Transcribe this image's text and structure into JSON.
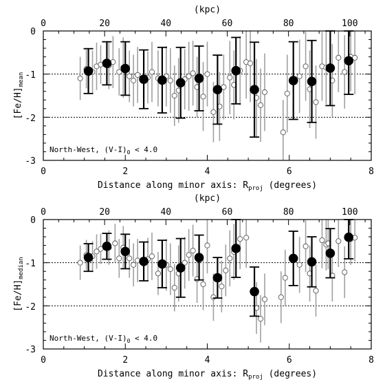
{
  "chart_data": [
    {
      "type": "scatter",
      "xlabel_main": "Distance along minor axis: R",
      "xlabel_sub": "proj",
      "xlabel_tail": " (degrees)",
      "ylabel_main": "[Fe/H]",
      "ylabel_sub": "mean",
      "top_axis_label": "(kpc)",
      "annotation_main": "North-West, (V-I)",
      "annotation_sub": "0",
      "annotation_tail": " < 4.0",
      "xlim": [
        0,
        8
      ],
      "ylim": [
        -3,
        0
      ],
      "top_lim": [
        0,
        107
      ],
      "x_ticks": [
        "0",
        "2",
        "4",
        "6",
        "8"
      ],
      "y_ticks": [
        "0",
        "-1",
        "-2",
        "-3"
      ],
      "top_ticks": [
        "0",
        "20",
        "40",
        "60",
        "80",
        "100"
      ],
      "reference_lines": [
        -1,
        -2
      ],
      "series": [
        {
          "points": [
            {
              "x": 1.1,
              "y": -0.93,
              "err_lo": 0.52,
              "err_hi": 0.52
            },
            {
              "x": 1.55,
              "y": -0.75,
              "err_lo": 0.5,
              "err_hi": 0.5
            },
            {
              "x": 2.0,
              "y": -0.87,
              "err_lo": 0.62,
              "err_hi": 0.62
            },
            {
              "x": 2.45,
              "y": -1.12,
              "err_lo": 0.68,
              "err_hi": 0.68
            },
            {
              "x": 2.9,
              "y": -1.14,
              "err_lo": 0.76,
              "err_hi": 0.76
            },
            {
              "x": 3.35,
              "y": -1.2,
              "err_lo": 0.82,
              "err_hi": 0.82
            },
            {
              "x": 3.8,
              "y": -1.1,
              "err_lo": 0.75,
              "err_hi": 0.75
            },
            {
              "x": 4.25,
              "y": -1.36,
              "err_lo": 0.8,
              "err_hi": 0.8
            },
            {
              "x": 4.7,
              "y": -0.92,
              "err_lo": 0.77,
              "err_hi": 0.77
            },
            {
              "x": 5.15,
              "y": -1.36,
              "err_lo": 1.1,
              "err_hi": 1.1
            },
            {
              "x": 6.1,
              "y": -1.15,
              "err_lo": 0.9,
              "err_hi": 0.9
            },
            {
              "x": 6.55,
              "y": -1.17,
              "err_lo": 0.95,
              "err_hi": 0.95
            },
            {
              "x": 7.0,
              "y": -0.86,
              "err_lo": 0.87,
              "err_hi": 0.87
            },
            {
              "x": 7.45,
              "y": -0.69,
              "err_lo": 0.78,
              "err_hi": 0.78
            }
          ]
        },
        {
          "points": [
            {
              "x": 0.9,
              "y": -1.1,
              "err": 0.5
            },
            {
              "x": 1.05,
              "y": -0.88,
              "err": 0.45
            },
            {
              "x": 1.2,
              "y": -0.95,
              "err": 0.5
            },
            {
              "x": 1.3,
              "y": -0.82,
              "err": 0.55
            },
            {
              "x": 1.4,
              "y": -0.78,
              "err": 0.45
            },
            {
              "x": 1.6,
              "y": -0.8,
              "err": 0.55
            },
            {
              "x": 1.7,
              "y": -0.72,
              "err": 0.6
            },
            {
              "x": 1.85,
              "y": -0.95,
              "err": 0.55
            },
            {
              "x": 1.95,
              "y": -0.85,
              "err": 0.7
            },
            {
              "x": 2.1,
              "y": -1.05,
              "err": 0.6
            },
            {
              "x": 2.2,
              "y": -1.15,
              "err": 0.6
            },
            {
              "x": 2.3,
              "y": -1.02,
              "err": 0.65
            },
            {
              "x": 2.55,
              "y": -1.08,
              "err": 0.6
            },
            {
              "x": 2.65,
              "y": -0.95,
              "err": 0.7
            },
            {
              "x": 2.8,
              "y": -1.1,
              "err": 0.65
            },
            {
              "x": 3.0,
              "y": -1.05,
              "err": 0.7
            },
            {
              "x": 3.1,
              "y": -1.15,
              "err": 0.75
            },
            {
              "x": 3.2,
              "y": -1.5,
              "err": 0.7
            },
            {
              "x": 3.3,
              "y": -1.38,
              "err": 0.75
            },
            {
              "x": 3.45,
              "y": -1.12,
              "err": 0.7
            },
            {
              "x": 3.55,
              "y": -1.05,
              "err": 0.8
            },
            {
              "x": 3.65,
              "y": -0.98,
              "err": 0.75
            },
            {
              "x": 3.75,
              "y": -1.3,
              "err": 0.7
            },
            {
              "x": 3.9,
              "y": -1.52,
              "err": 0.8
            },
            {
              "x": 4.0,
              "y": -1.0,
              "err": 0.75
            },
            {
              "x": 4.15,
              "y": -1.88,
              "err": 0.7
            },
            {
              "x": 4.3,
              "y": -1.75,
              "err": 0.8
            },
            {
              "x": 4.4,
              "y": -1.3,
              "err": 0.75
            },
            {
              "x": 4.55,
              "y": -1.08,
              "err": 0.85
            },
            {
              "x": 4.65,
              "y": -1.25,
              "err": 0.8
            },
            {
              "x": 4.8,
              "y": -0.92,
              "err": 0.8
            },
            {
              "x": 4.95,
              "y": -0.72,
              "err": 0.85
            },
            {
              "x": 5.05,
              "y": -0.75,
              "err": 0.9
            },
            {
              "x": 5.2,
              "y": -1.55,
              "err": 0.9
            },
            {
              "x": 5.3,
              "y": -1.72,
              "err": 0.85
            },
            {
              "x": 5.4,
              "y": -1.42,
              "err": 0.9
            },
            {
              "x": 5.85,
              "y": -2.35,
              "err": 0.75
            },
            {
              "x": 5.95,
              "y": -1.45,
              "err": 0.9
            },
            {
              "x": 6.25,
              "y": -1.05,
              "err": 0.85
            },
            {
              "x": 6.4,
              "y": -0.82,
              "err": 0.8
            },
            {
              "x": 6.5,
              "y": -1.35,
              "err": 0.9
            },
            {
              "x": 6.65,
              "y": -1.65,
              "err": 0.85
            },
            {
              "x": 6.8,
              "y": -0.82,
              "err": 0.8
            },
            {
              "x": 6.9,
              "y": -0.85,
              "err": 0.85
            },
            {
              "x": 7.05,
              "y": -1.15,
              "err": 0.85
            },
            {
              "x": 7.2,
              "y": -0.62,
              "err": 0.8
            },
            {
              "x": 7.35,
              "y": -0.95,
              "err": 0.85
            },
            {
              "x": 7.5,
              "y": -0.6,
              "err": 0.8
            },
            {
              "x": 7.6,
              "y": -0.62,
              "err": 0.85
            }
          ]
        }
      ]
    },
    {
      "type": "scatter",
      "xlabel_main": "Distance along minor axis: R",
      "xlabel_sub": "proj",
      "xlabel_tail": " (degrees)",
      "ylabel_main": "[Fe/H]",
      "ylabel_sub": "median",
      "top_axis_label": "(kpc)",
      "annotation_main": "North-West, (V-I)",
      "annotation_sub": "0",
      "annotation_tail": " < 4.0",
      "xlim": [
        0,
        8
      ],
      "ylim": [
        -3,
        0
      ],
      "top_lim": [
        0,
        107
      ],
      "x_ticks": [
        "0",
        "2",
        "4",
        "6",
        "8"
      ],
      "y_ticks": [
        "0",
        "-1",
        "-2",
        "-3"
      ],
      "top_ticks": [
        "0",
        "20",
        "40",
        "60",
        "80",
        "100"
      ],
      "reference_lines": [
        -1,
        -2
      ],
      "series": [
        {
          "points": [
            {
              "x": 1.1,
              "y": -0.88,
              "err_lo": 0.32,
              "err_hi": 0.32
            },
            {
              "x": 1.55,
              "y": -0.62,
              "err_lo": 0.3,
              "err_hi": 0.3
            },
            {
              "x": 2.0,
              "y": -0.74,
              "err_lo": 0.4,
              "err_hi": 0.4
            },
            {
              "x": 2.45,
              "y": -0.97,
              "err_lo": 0.45,
              "err_hi": 0.45
            },
            {
              "x": 2.9,
              "y": -1.03,
              "err_lo": 0.55,
              "err_hi": 0.55
            },
            {
              "x": 3.35,
              "y": -1.12,
              "err_lo": 0.68,
              "err_hi": 0.68
            },
            {
              "x": 3.8,
              "y": -0.88,
              "err_lo": 0.52,
              "err_hi": 0.52
            },
            {
              "x": 4.25,
              "y": -1.35,
              "err_lo": 0.47,
              "err_hi": 0.47
            },
            {
              "x": 4.7,
              "y": -0.67,
              "err_lo": 0.67,
              "err_hi": 0.67
            },
            {
              "x": 5.15,
              "y": -1.67,
              "err_lo": 0.57,
              "err_hi": 0.57
            },
            {
              "x": 6.1,
              "y": -0.9,
              "err_lo": 0.63,
              "err_hi": 0.63
            },
            {
              "x": 6.55,
              "y": -0.98,
              "err_lo": 0.58,
              "err_hi": 0.58
            },
            {
              "x": 7.0,
              "y": -0.78,
              "err_lo": 0.57,
              "err_hi": 0.57
            },
            {
              "x": 7.45,
              "y": -0.41,
              "err_lo": 0.5,
              "err_hi": 0.5
            }
          ]
        },
        {
          "points": [
            {
              "x": 0.9,
              "y": -1.0,
              "err": 0.4
            },
            {
              "x": 1.05,
              "y": -0.82,
              "err": 0.35
            },
            {
              "x": 1.2,
              "y": -0.85,
              "err": 0.35
            },
            {
              "x": 1.3,
              "y": -0.74,
              "err": 0.4
            },
            {
              "x": 1.4,
              "y": -0.68,
              "err": 0.35
            },
            {
              "x": 1.6,
              "y": -0.65,
              "err": 0.4
            },
            {
              "x": 1.75,
              "y": -0.55,
              "err": 0.45
            },
            {
              "x": 1.85,
              "y": -0.9,
              "err": 0.45
            },
            {
              "x": 1.95,
              "y": -0.65,
              "err": 0.5
            },
            {
              "x": 2.1,
              "y": -0.9,
              "err": 0.45
            },
            {
              "x": 2.2,
              "y": -1.05,
              "err": 0.5
            },
            {
              "x": 2.3,
              "y": -0.95,
              "err": 0.5
            },
            {
              "x": 2.55,
              "y": -0.92,
              "err": 0.5
            },
            {
              "x": 2.65,
              "y": -0.85,
              "err": 0.55
            },
            {
              "x": 2.8,
              "y": -1.25,
              "err": 0.5
            },
            {
              "x": 3.0,
              "y": -1.05,
              "err": 0.6
            },
            {
              "x": 3.1,
              "y": -1.15,
              "err": 0.6
            },
            {
              "x": 3.2,
              "y": -1.58,
              "err": 0.55
            },
            {
              "x": 3.3,
              "y": -1.25,
              "err": 0.65
            },
            {
              "x": 3.45,
              "y": -1.0,
              "err": 0.6
            },
            {
              "x": 3.55,
              "y": -0.82,
              "err": 0.6
            },
            {
              "x": 3.65,
              "y": -0.72,
              "err": 0.6
            },
            {
              "x": 3.75,
              "y": -1.38,
              "err": 0.55
            },
            {
              "x": 3.9,
              "y": -1.5,
              "err": 0.6
            },
            {
              "x": 4.0,
              "y": -0.6,
              "err": 0.65
            },
            {
              "x": 4.15,
              "y": -1.8,
              "err": 0.55
            },
            {
              "x": 4.35,
              "y": -1.55,
              "err": 0.6
            },
            {
              "x": 4.45,
              "y": -1.18,
              "err": 0.6
            },
            {
              "x": 4.55,
              "y": -0.9,
              "err": 0.65
            },
            {
              "x": 4.65,
              "y": -0.75,
              "err": 0.65
            },
            {
              "x": 4.8,
              "y": -0.45,
              "err": 0.7
            },
            {
              "x": 4.95,
              "y": -0.42,
              "err": 0.7
            },
            {
              "x": 5.2,
              "y": -2.05,
              "err": 0.6
            },
            {
              "x": 5.3,
              "y": -2.3,
              "err": 0.55
            },
            {
              "x": 5.4,
              "y": -1.85,
              "err": 0.6
            },
            {
              "x": 5.8,
              "y": -1.8,
              "err": 0.6
            },
            {
              "x": 5.9,
              "y": -1.35,
              "err": 0.65
            },
            {
              "x": 6.25,
              "y": -1.05,
              "err": 0.65
            },
            {
              "x": 6.4,
              "y": -0.62,
              "err": 0.6
            },
            {
              "x": 6.5,
              "y": -1.25,
              "err": 0.65
            },
            {
              "x": 6.65,
              "y": -1.65,
              "err": 0.6
            },
            {
              "x": 6.8,
              "y": -0.48,
              "err": 0.65
            },
            {
              "x": 6.9,
              "y": -0.58,
              "err": 0.6
            },
            {
              "x": 6.95,
              "y": -0.55,
              "err": 0.6
            },
            {
              "x": 7.05,
              "y": -1.3,
              "err": 0.6
            },
            {
              "x": 7.2,
              "y": -0.5,
              "err": 0.6
            },
            {
              "x": 7.35,
              "y": -1.22,
              "err": 0.6
            },
            {
              "x": 7.5,
              "y": -0.45,
              "err": 0.6
            },
            {
              "x": 7.6,
              "y": -0.42,
              "err": 0.55
            }
          ]
        }
      ]
    }
  ]
}
